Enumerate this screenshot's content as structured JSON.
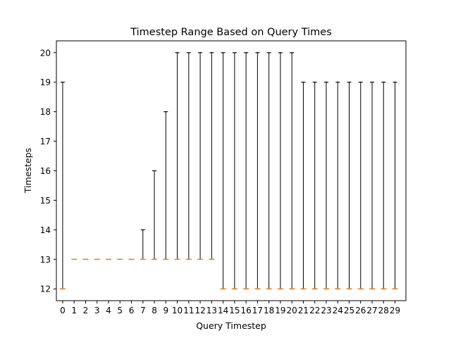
{
  "chart_data": {
    "type": "boxplot",
    "title": "Timestep Range Based on Query Times",
    "xlabel": "Query Timestep",
    "ylabel": "Timesteps",
    "x_ticks": [
      "0",
      "1",
      "2",
      "3",
      "4",
      "5",
      "6",
      "7",
      "8",
      "9",
      "10",
      "11",
      "12",
      "13",
      "14",
      "15",
      "16",
      "17",
      "18",
      "19",
      "20",
      "21",
      "22",
      "23",
      "24",
      "25",
      "26",
      "27",
      "28",
      "29"
    ],
    "y_ticks": [
      12,
      13,
      14,
      15,
      16,
      17,
      18,
      19,
      20
    ],
    "ylim": [
      11.6,
      20.4
    ],
    "grid": false,
    "series": [
      {
        "x": "0",
        "low": 12,
        "high": 19,
        "median": 12
      },
      {
        "x": "1",
        "low": 13,
        "high": 13,
        "median": 13
      },
      {
        "x": "2",
        "low": 13,
        "high": 13,
        "median": 13
      },
      {
        "x": "3",
        "low": 13,
        "high": 13,
        "median": 13
      },
      {
        "x": "4",
        "low": 13,
        "high": 13,
        "median": 13
      },
      {
        "x": "5",
        "low": 13,
        "high": 13,
        "median": 13
      },
      {
        "x": "6",
        "low": 13,
        "high": 13,
        "median": 13
      },
      {
        "x": "7",
        "low": 13,
        "high": 14,
        "median": 13
      },
      {
        "x": "8",
        "low": 13,
        "high": 16,
        "median": 13
      },
      {
        "x": "9",
        "low": 13,
        "high": 18,
        "median": 13
      },
      {
        "x": "10",
        "low": 13,
        "high": 20,
        "median": 13
      },
      {
        "x": "11",
        "low": 13,
        "high": 20,
        "median": 13
      },
      {
        "x": "12",
        "low": 13,
        "high": 20,
        "median": 13
      },
      {
        "x": "13",
        "low": 13,
        "high": 20,
        "median": 13
      },
      {
        "x": "14",
        "low": 12,
        "high": 20,
        "median": 12
      },
      {
        "x": "15",
        "low": 12,
        "high": 20,
        "median": 12
      },
      {
        "x": "16",
        "low": 12,
        "high": 20,
        "median": 12
      },
      {
        "x": "17",
        "low": 12,
        "high": 20,
        "median": 12
      },
      {
        "x": "18",
        "low": 12,
        "high": 20,
        "median": 12
      },
      {
        "x": "19",
        "low": 12,
        "high": 20,
        "median": 12
      },
      {
        "x": "20",
        "low": 12,
        "high": 20,
        "median": 12
      },
      {
        "x": "21",
        "low": 12,
        "high": 19,
        "median": 12
      },
      {
        "x": "22",
        "low": 12,
        "high": 19,
        "median": 12
      },
      {
        "x": "23",
        "low": 12,
        "high": 19,
        "median": 12
      },
      {
        "x": "24",
        "low": 12,
        "high": 19,
        "median": 12
      },
      {
        "x": "25",
        "low": 12,
        "high": 19,
        "median": 12
      },
      {
        "x": "26",
        "low": 12,
        "high": 19,
        "median": 12
      },
      {
        "x": "27",
        "low": 12,
        "high": 19,
        "median": 12
      },
      {
        "x": "28",
        "low": 12,
        "high": 19,
        "median": 12
      },
      {
        "x": "29",
        "low": 12,
        "high": 19,
        "median": 12
      }
    ],
    "colors": {
      "whisker": "#000000",
      "median": "#ff7f0e",
      "axes": "#000000"
    }
  }
}
